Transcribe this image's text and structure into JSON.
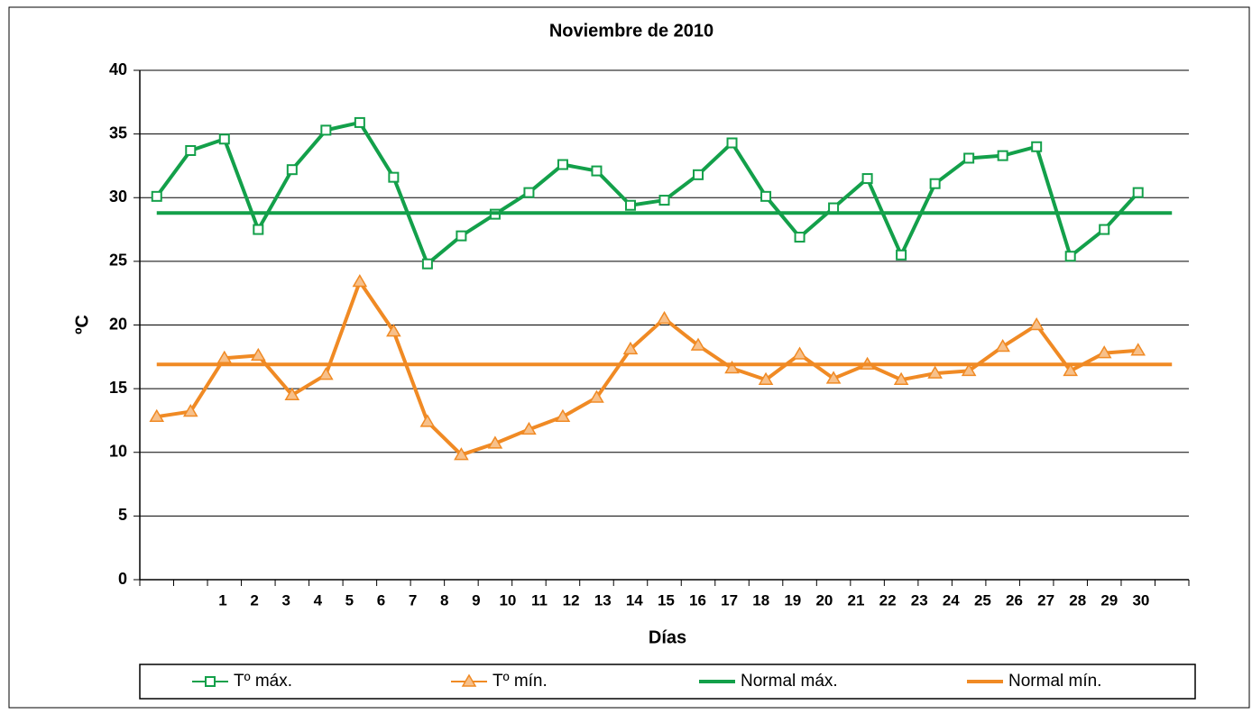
{
  "chart_data": {
    "type": "line",
    "title": "Noviembre de 2010",
    "x_label": "Días",
    "y_label": "ºC",
    "categories": [
      "1",
      "2",
      "3",
      "4",
      "5",
      "6",
      "7",
      "8",
      "9",
      "10",
      "11",
      "12",
      "13",
      "14",
      "15",
      "16",
      "17",
      "18",
      "19",
      "20",
      "21",
      "22",
      "23",
      "24",
      "25",
      "26",
      "27",
      "28",
      "29",
      "30",
      null
    ],
    "series": [
      {
        "name": "Tº máx.",
        "color": "#13a04a",
        "marker": "square",
        "values": [
          30.1,
          33.7,
          34.6,
          27.5,
          32.2,
          35.3,
          35.9,
          31.6,
          24.8,
          27.0,
          28.7,
          30.4,
          32.6,
          32.1,
          29.4,
          29.8,
          31.8,
          34.3,
          30.1,
          26.9,
          29.2,
          31.5,
          25.5,
          31.1,
          33.1,
          33.3,
          34.0,
          25.4,
          27.5,
          30.4,
          null
        ]
      },
      {
        "name": "Tº mín.",
        "color": "#f08a24",
        "marker": "triangle",
        "values": [
          12.8,
          13.2,
          17.4,
          17.6,
          14.5,
          16.1,
          23.4,
          19.5,
          12.4,
          9.8,
          10.7,
          11.8,
          12.8,
          14.3,
          18.1,
          20.5,
          18.4,
          16.6,
          15.7,
          17.7,
          15.8,
          16.9,
          15.7,
          16.2,
          16.4,
          18.3,
          20.0,
          16.4,
          17.8,
          18.0,
          null
        ]
      },
      {
        "name": "Normal máx.",
        "color": "#13a04a",
        "values": [
          28.8,
          28.8,
          28.8,
          28.8,
          28.8,
          28.8,
          28.8,
          28.8,
          28.8,
          28.8,
          28.8,
          28.8,
          28.8,
          28.8,
          28.8,
          28.8,
          28.8,
          28.8,
          28.8,
          28.8,
          28.8,
          28.8,
          28.8,
          28.8,
          28.8,
          28.8,
          28.8,
          28.8,
          28.8,
          28.8,
          28.8
        ]
      },
      {
        "name": "Normal mín.",
        "color": "#f08a24",
        "values": [
          16.9,
          16.9,
          16.9,
          16.9,
          16.9,
          16.9,
          16.9,
          16.9,
          16.9,
          16.9,
          16.9,
          16.9,
          16.9,
          16.9,
          16.9,
          16.9,
          16.9,
          16.9,
          16.9,
          16.9,
          16.9,
          16.9,
          16.9,
          16.9,
          16.9,
          16.9,
          16.9,
          16.9,
          16.9,
          16.9,
          16.9
        ]
      }
    ],
    "ylim": [
      0,
      40
    ],
    "yticks": [
      0,
      5,
      10,
      15,
      20,
      25,
      30,
      35,
      40
    ],
    "grid": true,
    "legend": "bottom"
  }
}
